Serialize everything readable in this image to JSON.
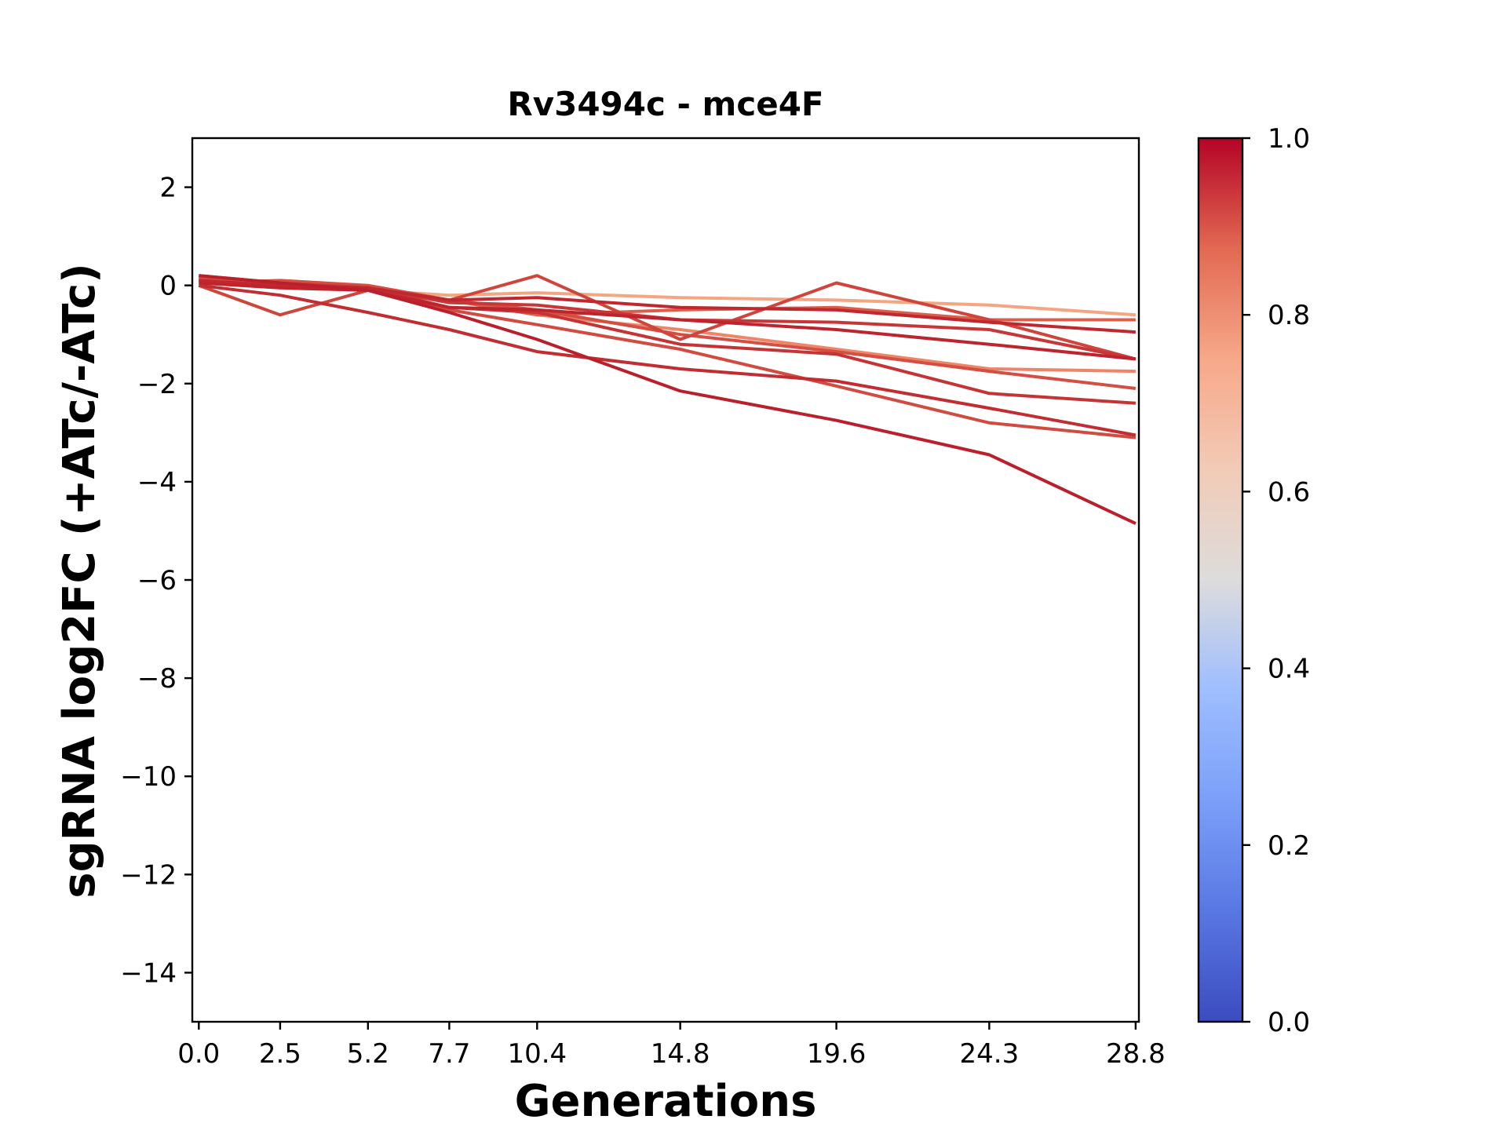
{
  "chart_data": {
    "type": "line",
    "title": "Rv3494c - mce4F",
    "xlabel": "Generations",
    "ylabel": "sgRNA log2FC (+ATc/-ATc)",
    "x": [
      0.0,
      2.5,
      5.2,
      7.7,
      10.4,
      14.8,
      19.6,
      24.3,
      28.8
    ],
    "x_tick_labels": [
      "0.0",
      "2.5",
      "5.2",
      "7.7",
      "10.4",
      "14.8",
      "19.6",
      "24.3",
      "28.8"
    ],
    "xlim": [
      -0.2,
      28.9
    ],
    "ylim": [
      -15,
      3
    ],
    "y_ticks": [
      2,
      0,
      -2,
      -4,
      -6,
      -8,
      -10,
      -12,
      -14
    ],
    "y_tick_labels": [
      "2",
      "0",
      "−2",
      "−4",
      "−6",
      "−8",
      "−10",
      "−12",
      "−14"
    ],
    "grid": false,
    "colorbar": {
      "colormap": "coolwarm",
      "range": [
        0.0,
        1.0
      ],
      "ticks": [
        0.0,
        0.2,
        0.4,
        0.6,
        0.8,
        1.0
      ],
      "tick_labels": [
        "0.0",
        "0.2",
        "0.4",
        "0.6",
        "0.8",
        "1.0"
      ],
      "stops": [
        {
          "offset": 0.0,
          "color": "#3b4cc0"
        },
        {
          "offset": 0.125,
          "color": "#5977e3"
        },
        {
          "offset": 0.25,
          "color": "#7b9ff9"
        },
        {
          "offset": 0.375,
          "color": "#9ebeff"
        },
        {
          "offset": 0.5,
          "color": "#dddcdc"
        },
        {
          "offset": 0.625,
          "color": "#f2cbb7"
        },
        {
          "offset": 0.75,
          "color": "#f7a889"
        },
        {
          "offset": 0.875,
          "color": "#e26952"
        },
        {
          "offset": 1.0,
          "color": "#b40426"
        }
      ]
    },
    "series": [
      {
        "color": "#f4a582",
        "values": [
          0.1,
          0.0,
          -0.1,
          -0.2,
          -0.15,
          -0.25,
          -0.3,
          -0.4,
          -0.6
        ]
      },
      {
        "color": "#ee8468",
        "values": [
          0.05,
          -0.05,
          -0.1,
          -0.3,
          -0.6,
          -0.9,
          -1.3,
          -1.7,
          -1.75
        ]
      },
      {
        "color": "#dc5d4a",
        "values": [
          0.1,
          0.0,
          -0.05,
          -0.3,
          -0.6,
          -0.5,
          -0.45,
          -0.7,
          -0.7
        ]
      },
      {
        "color": "#d44e41",
        "values": [
          0.05,
          0.1,
          0.0,
          -0.3,
          -0.5,
          -1.0,
          -1.35,
          -1.75,
          -2.1
        ]
      },
      {
        "color": "#cf453c",
        "values": [
          0.0,
          -0.6,
          -0.1,
          -0.3,
          0.2,
          -1.1,
          0.05,
          -0.7,
          -1.5
        ]
      },
      {
        "color": "#d24b40",
        "values": [
          0.15,
          0.0,
          -0.05,
          -0.5,
          -0.8,
          -1.3,
          -2.05,
          -2.8,
          -3.1
        ]
      },
      {
        "color": "#c83737",
        "values": [
          0.2,
          0.05,
          -0.05,
          -0.35,
          -0.4,
          -0.7,
          -0.75,
          -0.9,
          -1.5
        ]
      },
      {
        "color": "#c53334",
        "values": [
          0.1,
          0.0,
          -0.05,
          -0.45,
          -0.55,
          -1.2,
          -1.4,
          -2.2,
          -2.4
        ]
      },
      {
        "color": "#c12d31",
        "values": [
          0.0,
          -0.2,
          -0.55,
          -0.9,
          -1.35,
          -1.7,
          -1.95,
          -2.5,
          -3.05
        ]
      },
      {
        "color": "#c0282f",
        "values": [
          0.1,
          0.0,
          -0.05,
          -0.3,
          -0.25,
          -0.45,
          -0.5,
          -0.75,
          -0.95
        ]
      },
      {
        "color": "#be242e",
        "values": [
          0.05,
          -0.05,
          -0.1,
          -0.45,
          -0.5,
          -0.7,
          -0.9,
          -1.2,
          -1.5
        ]
      },
      {
        "color": "#bb1f2c",
        "values": [
          0.2,
          0.05,
          -0.1,
          -0.55,
          -1.1,
          -2.15,
          -2.75,
          -3.45,
          -4.85
        ]
      }
    ]
  }
}
